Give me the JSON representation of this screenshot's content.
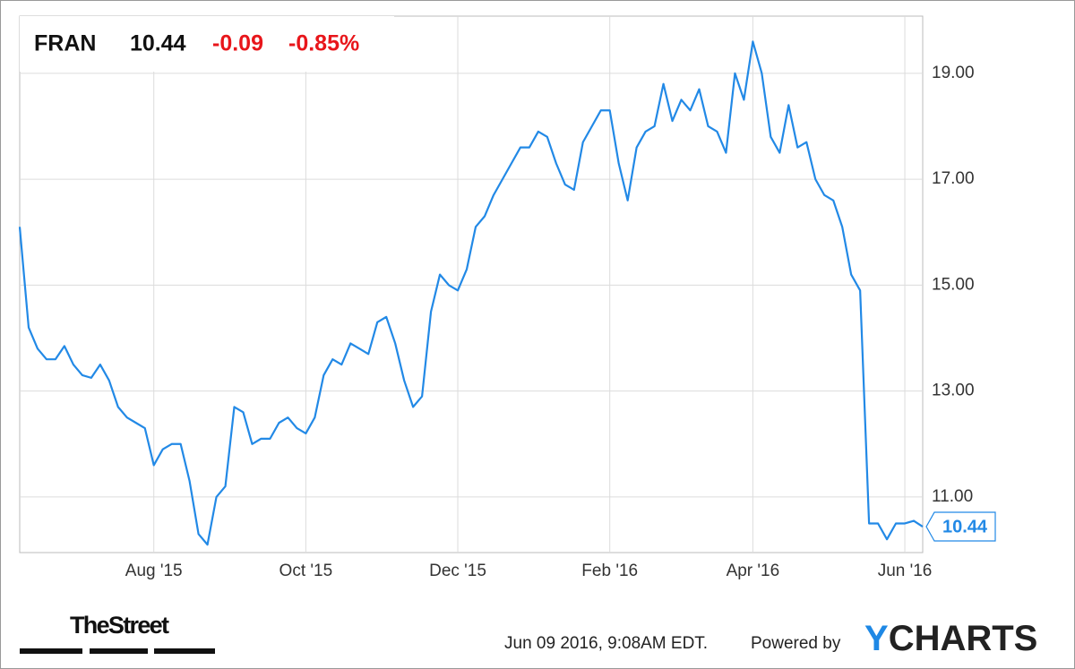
{
  "chart_data": {
    "type": "line",
    "ticker": "FRAN",
    "price": "10.44",
    "change": "-0.09",
    "change_percent": "-0.85%",
    "categories": [
      null,
      null,
      null,
      null,
      null,
      null,
      null,
      null,
      null,
      null,
      null,
      null,
      null,
      null,
      null,
      "Aug '15",
      null,
      null,
      null,
      null,
      null,
      null,
      null,
      null,
      null,
      null,
      null,
      null,
      null,
      null,
      null,
      null,
      "Oct '15",
      null,
      null,
      null,
      null,
      null,
      null,
      null,
      null,
      null,
      null,
      null,
      null,
      null,
      null,
      null,
      null,
      "Dec '15",
      null,
      null,
      null,
      null,
      null,
      null,
      null,
      null,
      null,
      null,
      null,
      null,
      null,
      null,
      null,
      null,
      "Feb '16",
      null,
      null,
      null,
      null,
      null,
      null,
      null,
      null,
      null,
      null,
      null,
      null,
      null,
      null,
      null,
      "Apr '16",
      null,
      null,
      null,
      null,
      null,
      null,
      null,
      null,
      null,
      null,
      null,
      null,
      null,
      null,
      null,
      null,
      "Jun '16",
      null,
      null
    ],
    "series": [
      {
        "color": "#2289e6",
        "values": [
          16.1,
          14.2,
          13.8,
          13.6,
          13.6,
          13.85,
          13.5,
          13.3,
          13.25,
          13.5,
          13.2,
          12.7,
          12.5,
          12.4,
          12.3,
          11.6,
          11.9,
          12.0,
          12.0,
          11.3,
          10.3,
          10.1,
          11.0,
          11.2,
          12.7,
          12.6,
          12.0,
          12.1,
          12.1,
          12.4,
          12.5,
          12.3,
          12.2,
          12.5,
          13.3,
          13.6,
          13.5,
          13.9,
          13.8,
          13.7,
          14.3,
          14.4,
          13.9,
          13.2,
          12.7,
          12.9,
          14.5,
          15.2,
          15.0,
          14.9,
          15.3,
          16.1,
          16.3,
          16.7,
          17.0,
          17.3,
          17.6,
          17.6,
          17.9,
          17.8,
          17.3,
          16.9,
          16.8,
          17.7,
          18.0,
          18.3,
          18.3,
          17.3,
          16.6,
          17.6,
          17.9,
          18.0,
          18.8,
          18.1,
          18.5,
          18.3,
          18.7,
          18.0,
          17.9,
          17.5,
          19.0,
          18.5,
          19.6,
          19.0,
          17.8,
          17.5,
          18.4,
          17.6,
          17.7,
          17.0,
          16.7,
          16.6,
          16.1,
          15.2,
          14.9,
          10.5,
          10.5,
          10.2,
          10.5,
          10.5,
          10.55,
          10.44
        ]
      }
    ],
    "ylim": [
      9.95,
      20.08
    ],
    "yticks": [
      {
        "value": 11,
        "label": "11.00"
      },
      {
        "value": 13,
        "label": "13.00"
      },
      {
        "value": 15,
        "label": "15.00"
      },
      {
        "value": 17,
        "label": "17.00"
      },
      {
        "value": 19,
        "label": "19.00"
      }
    ],
    "grid": true,
    "source": "TheStreet",
    "timestamp": "Jun 09 2016, 9:08AM EDT.",
    "powered_by": "Powered by",
    "brand_initial": "Y",
    "brand_rest": "CHARTS"
  }
}
